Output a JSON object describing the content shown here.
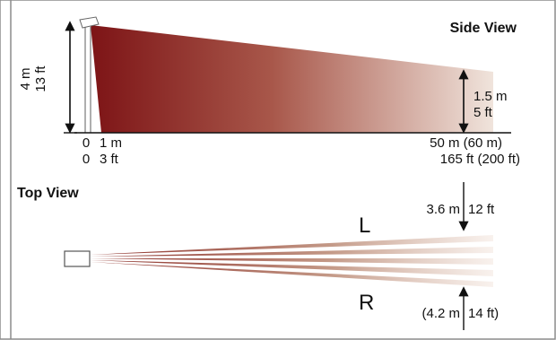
{
  "side_view": {
    "title": "Side View",
    "height_metric": "4 m",
    "height_imperial": "13 ft",
    "target_metric": "1.5 m",
    "target_imperial": "5 ft",
    "axis": {
      "start_metric": "0",
      "start_imperial": "0",
      "near_metric": "1 m",
      "near_imperial": "3 ft",
      "far_metric": "50 m (60 m)",
      "far_imperial": "165 ft (200 ft)"
    }
  },
  "top_view": {
    "title": "Top View",
    "left_label": "L",
    "right_label": "R",
    "width_top_metric": "3.6 m",
    "width_top_imperial": "12 ft",
    "width_bottom_metric": "(4.2 m",
    "width_bottom_imperial": "14 ft)"
  },
  "colors": {
    "beam_dark": "#7d1416",
    "beam_light": "#ebdcd2",
    "frame": "#888888",
    "line": "#111111"
  }
}
